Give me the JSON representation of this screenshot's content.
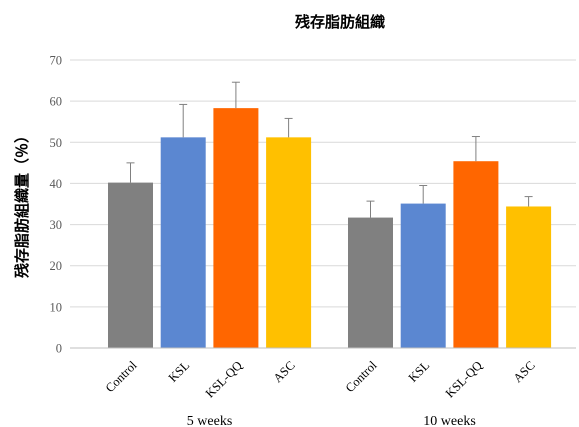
{
  "chart_data": {
    "type": "bar",
    "title": "残存脂肪組織",
    "ylabel": "残存脂肪組織量（％）",
    "xlabel": "",
    "ylim": [
      0,
      70
    ],
    "yticks": [
      0,
      10,
      20,
      30,
      40,
      50,
      60,
      70
    ],
    "grid": true,
    "legend": "none",
    "categories": [
      "Control",
      "KSL",
      "KSL-QQ",
      "ASC"
    ],
    "colors": [
      "#808080",
      "#5b87d1",
      "#ff6600",
      "#ffc000"
    ],
    "groups": [
      {
        "name": "5 weeks",
        "values": [
          40.2,
          51.2,
          58.3,
          51.2
        ],
        "errors": [
          4.8,
          8.0,
          6.3,
          4.6
        ]
      },
      {
        "name": "10 weeks",
        "values": [
          31.7,
          35.1,
          45.4,
          34.4
        ],
        "errors": [
          4.0,
          4.4,
          6.0,
          2.4
        ]
      }
    ]
  }
}
